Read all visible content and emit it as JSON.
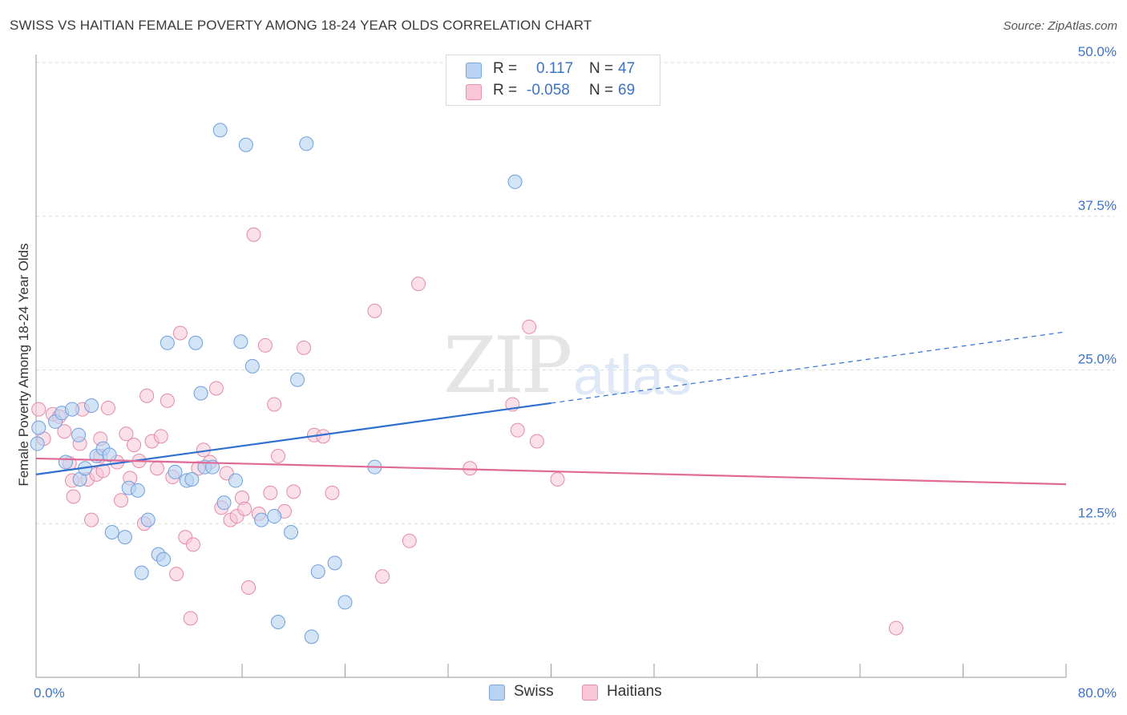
{
  "title": "SWISS VS HAITIAN FEMALE POVERTY AMONG 18-24 YEAR OLDS CORRELATION CHART",
  "source": "Source: ZipAtlas.com",
  "watermark": {
    "zip": "ZIP",
    "atlas": "atlas"
  },
  "legend": {
    "r_label": "R =",
    "n_label": "N =",
    "rows": [
      {
        "r": "0.117",
        "n": "47",
        "color": "#b8d2f2",
        "border": "#7aa6e0"
      },
      {
        "r": "-0.058",
        "n": "69",
        "color": "#f8c6d6",
        "border": "#e890ad"
      }
    ]
  },
  "bottom_legend": {
    "swiss": "Swiss",
    "haitians": "Haitians"
  },
  "colors": {
    "swiss_line": "#2f6fd0",
    "haiti_line": "#e06a95",
    "swiss_fill": "#b8d2f2",
    "haiti_fill": "#f8c6d6"
  },
  "chart_data": {
    "type": "scatter",
    "ylabel": "Female Poverty Among 18-24 Year Olds",
    "xlim": [
      0,
      80
    ],
    "ylim": [
      0,
      50
    ],
    "x_tick_labels": {
      "min": "0.0%",
      "max": "80.0%"
    },
    "y_ticks": [
      {
        "v": 12.5,
        "label": "12.5%"
      },
      {
        "v": 25.0,
        "label": "25.0%"
      },
      {
        "v": 37.5,
        "label": "37.5%"
      },
      {
        "v": 50.0,
        "label": "50.0%"
      }
    ],
    "series": [
      {
        "name": "Swiss",
        "trend": {
          "x0": 0,
          "y0": 16.5,
          "x1": 40,
          "y1": 22.3,
          "dash_to_x": 80,
          "dash_to_y": 28.1
        },
        "points": [
          [
            0.2,
            20.3
          ],
          [
            1.5,
            20.8
          ],
          [
            2.0,
            21.5
          ],
          [
            2.3,
            17.5
          ],
          [
            2.8,
            21.8
          ],
          [
            3.3,
            19.7
          ],
          [
            3.4,
            16.1
          ],
          [
            3.8,
            17.0
          ],
          [
            4.3,
            22.1
          ],
          [
            4.7,
            18.0
          ],
          [
            5.2,
            18.6
          ],
          [
            5.7,
            18.1
          ],
          [
            5.9,
            11.8
          ],
          [
            6.9,
            11.4
          ],
          [
            7.2,
            15.4
          ],
          [
            7.9,
            15.2
          ],
          [
            8.2,
            8.5
          ],
          [
            8.7,
            12.8
          ],
          [
            9.5,
            10.0
          ],
          [
            9.9,
            9.6
          ],
          [
            10.2,
            27.2
          ],
          [
            10.8,
            16.7
          ],
          [
            11.7,
            16.0
          ],
          [
            12.1,
            16.1
          ],
          [
            12.4,
            27.2
          ],
          [
            12.8,
            23.1
          ],
          [
            13.1,
            17.1
          ],
          [
            13.7,
            17.1
          ],
          [
            14.3,
            44.5
          ],
          [
            14.6,
            14.2
          ],
          [
            15.5,
            16.0
          ],
          [
            15.9,
            27.3
          ],
          [
            16.3,
            43.3
          ],
          [
            16.8,
            25.3
          ],
          [
            17.5,
            12.8
          ],
          [
            18.5,
            13.1
          ],
          [
            18.8,
            4.5
          ],
          [
            19.8,
            11.8
          ],
          [
            20.3,
            24.2
          ],
          [
            21.0,
            43.4
          ],
          [
            21.4,
            3.3
          ],
          [
            21.9,
            8.6
          ],
          [
            23.2,
            9.3
          ],
          [
            24.0,
            6.1
          ],
          [
            26.3,
            17.1
          ],
          [
            37.2,
            40.3
          ],
          [
            0.1,
            19.0
          ]
        ]
      },
      {
        "name": "Haitians",
        "trend": {
          "x0": 0,
          "y0": 17.8,
          "x1": 80,
          "y1": 15.7
        },
        "points": [
          [
            0.2,
            21.8
          ],
          [
            0.6,
            19.4
          ],
          [
            1.3,
            21.4
          ],
          [
            1.8,
            21.2
          ],
          [
            2.2,
            20.0
          ],
          [
            2.6,
            17.4
          ],
          [
            2.8,
            16.0
          ],
          [
            2.9,
            14.7
          ],
          [
            3.4,
            19.0
          ],
          [
            3.6,
            21.8
          ],
          [
            4.0,
            16.1
          ],
          [
            4.3,
            12.8
          ],
          [
            4.7,
            16.5
          ],
          [
            5.0,
            18.0
          ],
          [
            5.2,
            16.8
          ],
          [
            5.6,
            21.9
          ],
          [
            6.3,
            17.5
          ],
          [
            6.6,
            14.4
          ],
          [
            7.0,
            19.8
          ],
          [
            7.3,
            16.2
          ],
          [
            7.6,
            18.9
          ],
          [
            8.0,
            17.6
          ],
          [
            8.4,
            12.5
          ],
          [
            8.6,
            22.9
          ],
          [
            9.0,
            19.2
          ],
          [
            9.4,
            17.0
          ],
          [
            9.7,
            19.6
          ],
          [
            10.2,
            22.5
          ],
          [
            10.6,
            16.3
          ],
          [
            10.9,
            8.4
          ],
          [
            11.2,
            28.0
          ],
          [
            11.6,
            11.4
          ],
          [
            12.0,
            4.8
          ],
          [
            12.2,
            10.8
          ],
          [
            12.6,
            17.0
          ],
          [
            13.0,
            18.5
          ],
          [
            13.5,
            17.5
          ],
          [
            14.0,
            23.5
          ],
          [
            14.4,
            13.8
          ],
          [
            14.8,
            16.6
          ],
          [
            15.1,
            12.8
          ],
          [
            15.6,
            13.1
          ],
          [
            16.0,
            14.6
          ],
          [
            16.2,
            13.7
          ],
          [
            16.5,
            7.3
          ],
          [
            16.9,
            36.0
          ],
          [
            17.3,
            13.3
          ],
          [
            17.8,
            27.0
          ],
          [
            18.2,
            15.0
          ],
          [
            18.5,
            22.2
          ],
          [
            18.8,
            18.0
          ],
          [
            19.3,
            13.5
          ],
          [
            20.0,
            15.1
          ],
          [
            20.8,
            26.8
          ],
          [
            21.6,
            19.7
          ],
          [
            22.3,
            19.6
          ],
          [
            23.0,
            15.0
          ],
          [
            26.3,
            29.8
          ],
          [
            26.9,
            8.2
          ],
          [
            29.0,
            11.1
          ],
          [
            29.7,
            32.0
          ],
          [
            33.7,
            17.0
          ],
          [
            37.0,
            22.2
          ],
          [
            37.4,
            20.1
          ],
          [
            38.3,
            28.5
          ],
          [
            38.9,
            19.2
          ],
          [
            40.5,
            16.1
          ],
          [
            66.8,
            4.0
          ],
          [
            5.0,
            19.4
          ]
        ]
      }
    ]
  }
}
